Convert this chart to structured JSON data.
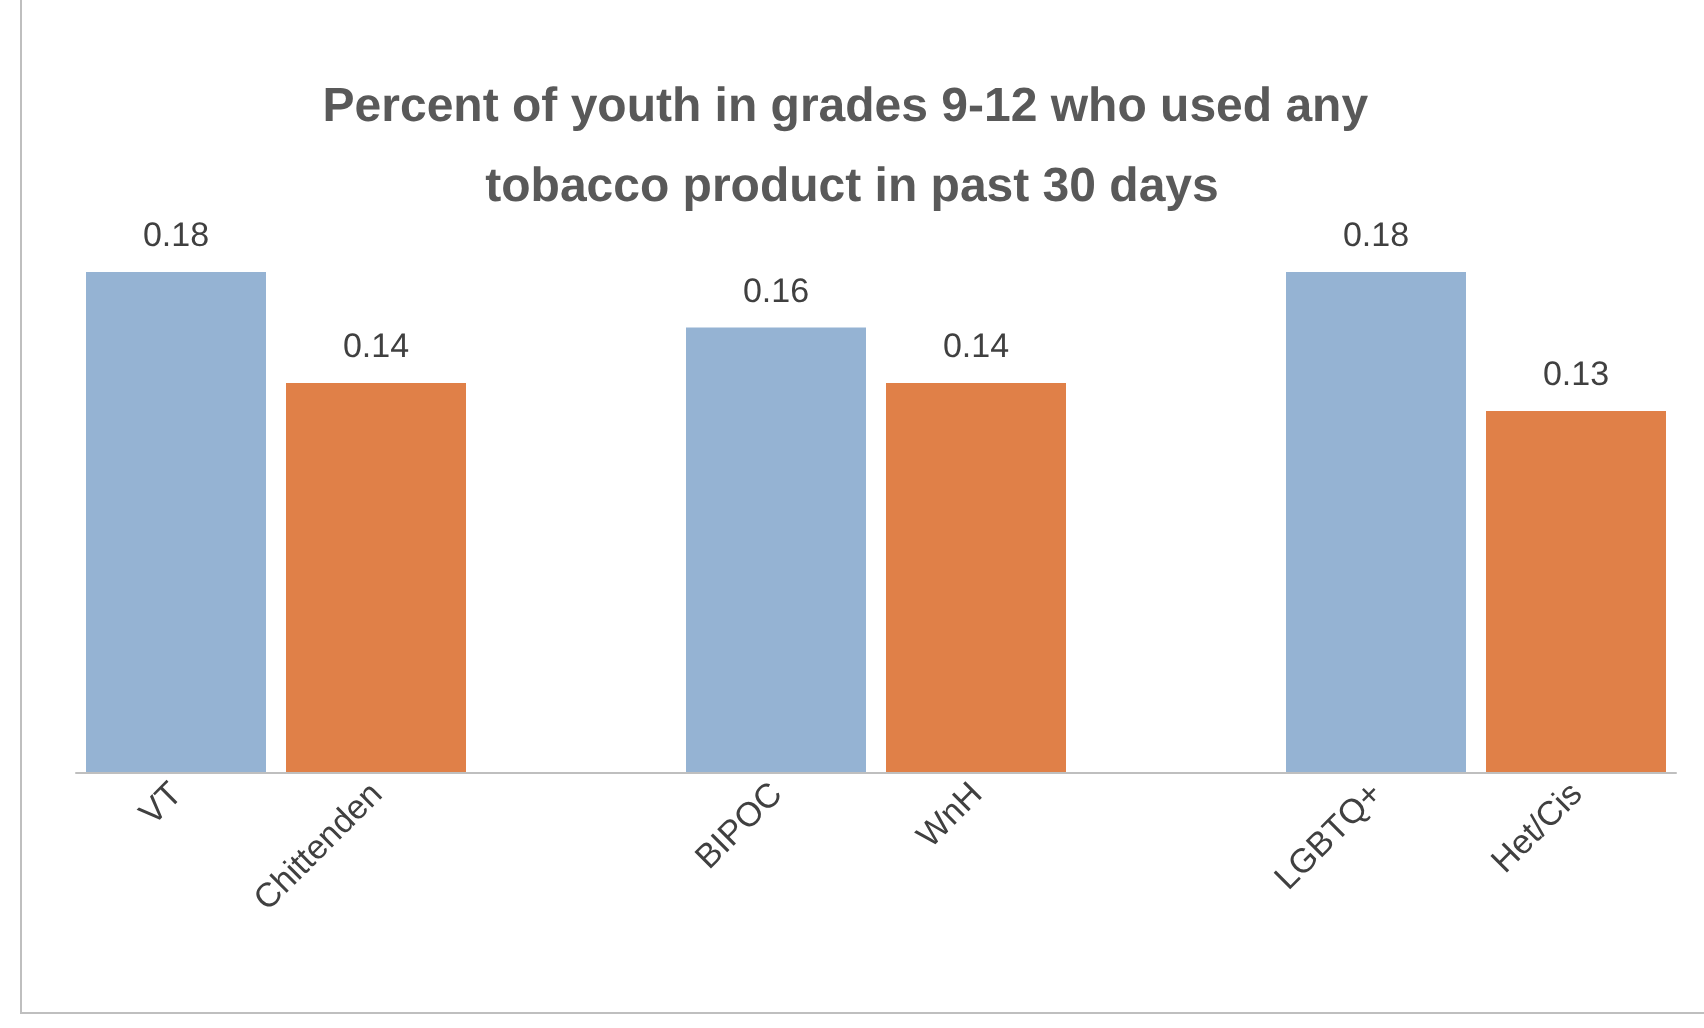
{
  "chart_data": {
    "type": "bar",
    "title": "Percent of youth in grades 9-12 who used any tobacco product in past 30 days",
    "categories": [
      "VT",
      "Chittenden",
      null,
      "BIPOC",
      "WnH",
      null,
      "LGBTQ+",
      "Het/Cis"
    ],
    "values": [
      0.18,
      0.14,
      null,
      0.16,
      0.14,
      null,
      0.18,
      0.13
    ],
    "colors": [
      "#95b3d3",
      "#e08048",
      null,
      "#95b3d3",
      "#e08048",
      null,
      "#95b3d3",
      "#e08048"
    ],
    "data_labels": true
  }
}
